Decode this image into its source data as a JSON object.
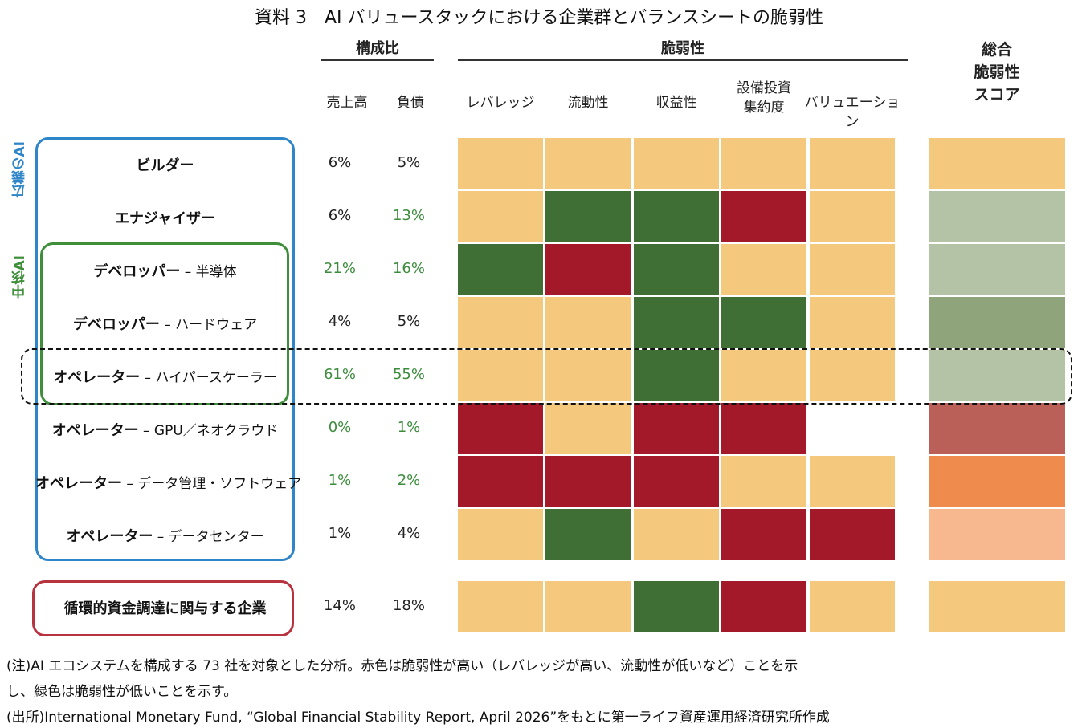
{
  "title": "資料 3　AI バリュースタックにおける企業群とバランスシートの脆弱性",
  "headers": {
    "composition": "構成比",
    "vulnerability": "脆弱性",
    "total": [
      "総合",
      "脆弱性",
      "スコア"
    ]
  },
  "group_labels": {
    "broad_ai": "広義のAI",
    "core_ai": "中核AI"
  },
  "colors": {
    "beige": "#f5c97d",
    "green": "#3f6f35",
    "red": "#a4192a",
    "white": "#ffffff",
    "total_sage": "#b4c2a6",
    "total_olive": "#8fa47a",
    "total_rose": "#bb6058",
    "total_orange": "#ef8b4c",
    "total_peach": "#f7b890",
    "pct_green": "#3c8c3c",
    "pct_black": "#222222",
    "box_blue": "#2e86c8",
    "box_green": "#3f8f3a",
    "box_red": "#b7333f"
  },
  "chart_data": {
    "type": "heatmap",
    "title": "資料 3　AI バリュースタックにおける企業群とバランスシートの脆弱性",
    "composition_columns": [
      "売上高",
      "負債"
    ],
    "vulnerability_columns": [
      "レバレッジ",
      "流動性",
      "収益性",
      "設備投資集約度",
      "バリュエーション"
    ],
    "vulnerability_column_lines": [
      [
        "レバレッジ"
      ],
      [
        "流動性"
      ],
      [
        "収益性"
      ],
      [
        "設備投資",
        "集約度"
      ],
      [
        "バリュエーション"
      ]
    ],
    "rows": [
      {
        "main": "ビルダー",
        "sep": "",
        "sub": "",
        "sales": "6%",
        "debt": "5%",
        "sales_green": false,
        "debt_green": false,
        "cells": [
          "beige",
          "beige",
          "beige",
          "beige",
          "beige"
        ],
        "total": "beige"
      },
      {
        "main": "エナジャイザー",
        "sep": "",
        "sub": "",
        "sales": "6%",
        "debt": "13%",
        "sales_green": false,
        "debt_green": true,
        "cells": [
          "beige",
          "green",
          "green",
          "red",
          "beige"
        ],
        "total": "total_sage"
      },
      {
        "main": "デベロッパー",
        "sep": " – ",
        "sub": "半導体",
        "sales": "21%",
        "debt": "16%",
        "sales_green": true,
        "debt_green": true,
        "cells": [
          "green",
          "red",
          "green",
          "beige",
          "beige"
        ],
        "total": "total_sage"
      },
      {
        "main": "デベロッパー",
        "sep": " – ",
        "sub": "ハードウェア",
        "sales": "4%",
        "debt": "5%",
        "sales_green": false,
        "debt_green": false,
        "cells": [
          "beige",
          "beige",
          "green",
          "green",
          "beige"
        ],
        "total": "total_olive"
      },
      {
        "main": "オペレーター",
        "sep": " – ",
        "sub": "ハイパースケーラー",
        "sales": "61%",
        "debt": "55%",
        "sales_green": true,
        "debt_green": true,
        "cells": [
          "beige",
          "beige",
          "green",
          "beige",
          "beige"
        ],
        "total": "total_sage"
      },
      {
        "main": "オペレーター",
        "sep": " – ",
        "sub": "GPU／ネオクラウド",
        "sales": "0%",
        "debt": "1%",
        "sales_green": true,
        "debt_green": true,
        "cells": [
          "red",
          "beige",
          "red",
          "red",
          "white"
        ],
        "total": "total_rose"
      },
      {
        "main": "オペレーター",
        "sep": " – ",
        "sub": "データ管理・ソフトウェア",
        "sales": "1%",
        "debt": "2%",
        "sales_green": true,
        "debt_green": true,
        "cells": [
          "red",
          "red",
          "red",
          "beige",
          "beige"
        ],
        "total": "total_orange"
      },
      {
        "main": "オペレーター",
        "sep": " – ",
        "sub": "データセンター",
        "sales": "1%",
        "debt": "4%",
        "sales_green": false,
        "debt_green": false,
        "cells": [
          "beige",
          "green",
          "beige",
          "red",
          "red"
        ],
        "total": "total_peach"
      },
      {
        "main": "循環的資金調達に関与する企業",
        "sep": "",
        "sub": "",
        "sales": "14%",
        "debt": "18%",
        "sales_green": false,
        "debt_green": false,
        "cells": [
          "beige",
          "beige",
          "green",
          "red",
          "beige"
        ],
        "total": "beige"
      }
    ]
  },
  "notes": [
    "(注)AI エコシステムを構成する 73 社を対象とした分析。赤色は脆弱性が高い（レバレッジが高い、流動性が低いなど）ことを示",
    "し、緑色は脆弱性が低いことを示す。",
    "(出所)International Monetary Fund, “Global Financial Stability Report, April 2026”をもとに第一ライフ資産運用経済研究所作成"
  ]
}
